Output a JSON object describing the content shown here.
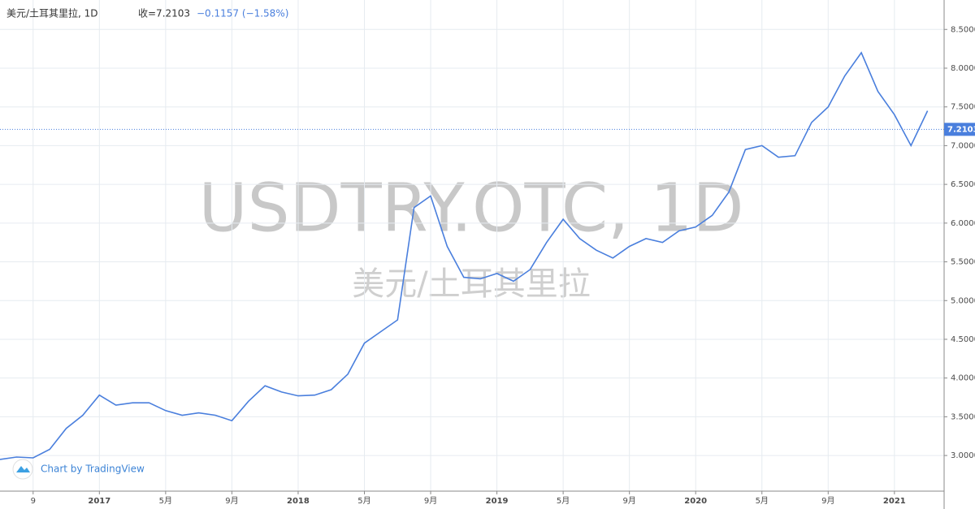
{
  "header": {
    "symbol": "美元/土耳其里拉, 1D",
    "close_text": "收=7.2103",
    "change_text": "−0.1157 (−1.58%)"
  },
  "watermark": {
    "main": "USDTRY.OTC, 1D",
    "sub": "美元/土耳其里拉"
  },
  "attribution": "Chart by TradingView",
  "chart_data": {
    "type": "line",
    "color": "#4a7fdd",
    "grid": true,
    "x": [
      "2016-07",
      "2016-08",
      "2016-09",
      "2016-10",
      "2016-11",
      "2016-12",
      "2017-01",
      "2017-02",
      "2017-03",
      "2017-04",
      "2017-05",
      "2017-06",
      "2017-07",
      "2017-08",
      "2017-09",
      "2017-10",
      "2017-11",
      "2017-12",
      "2018-01",
      "2018-02",
      "2018-03",
      "2018-04",
      "2018-05",
      "2018-06",
      "2018-07",
      "2018-08",
      "2018-09",
      "2018-10",
      "2018-11",
      "2018-12",
      "2019-01",
      "2019-02",
      "2019-03",
      "2019-04",
      "2019-05",
      "2019-06",
      "2019-07",
      "2019-08",
      "2019-09",
      "2019-10",
      "2019-11",
      "2019-12",
      "2020-01",
      "2020-02",
      "2020-03",
      "2020-04",
      "2020-05",
      "2020-06",
      "2020-07",
      "2020-08",
      "2020-09",
      "2020-10",
      "2020-11",
      "2020-12",
      "2021-01",
      "2021-02",
      "2021-03"
    ],
    "values": [
      2.95,
      2.98,
      2.97,
      3.08,
      3.35,
      3.52,
      3.78,
      3.65,
      3.68,
      3.68,
      3.58,
      3.52,
      3.55,
      3.52,
      3.45,
      3.7,
      3.9,
      3.82,
      3.77,
      3.78,
      3.85,
      4.05,
      4.45,
      4.6,
      4.75,
      6.2,
      6.35,
      5.7,
      5.3,
      5.28,
      5.35,
      5.25,
      5.4,
      5.75,
      6.05,
      5.8,
      5.65,
      5.55,
      5.7,
      5.8,
      5.75,
      5.9,
      5.95,
      6.1,
      6.4,
      6.95,
      7.0,
      6.85,
      6.87,
      7.3,
      7.5,
      7.9,
      8.2,
      7.7,
      7.4,
      7.0,
      7.45
    ],
    "last_price": 7.2103,
    "xlim": [
      "2016-07",
      "2021-04"
    ],
    "xticks": [
      {
        "value": "2016-09",
        "label": "9"
      },
      {
        "value": "2017-01",
        "label": "2017"
      },
      {
        "value": "2017-05",
        "label": "5月"
      },
      {
        "value": "2017-09",
        "label": "9月"
      },
      {
        "value": "2018-01",
        "label": "2018"
      },
      {
        "value": "2018-05",
        "label": "5月"
      },
      {
        "value": "2018-09",
        "label": "9月"
      },
      {
        "value": "2019-01",
        "label": "2019"
      },
      {
        "value": "2019-05",
        "label": "5月"
      },
      {
        "value": "2019-09",
        "label": "9月"
      },
      {
        "value": "2020-01",
        "label": "2020"
      },
      {
        "value": "2020-05",
        "label": "5月"
      },
      {
        "value": "2020-09",
        "label": "9月"
      },
      {
        "value": "2021-01",
        "label": "2021"
      }
    ],
    "ylim": [
      2.54,
      8.88
    ],
    "yticks": [
      {
        "value": 3,
        "label": "3.0000"
      },
      {
        "value": 3.5,
        "label": "3.5000"
      },
      {
        "value": 4,
        "label": "4.0000"
      },
      {
        "value": 4.5,
        "label": "4.5000"
      },
      {
        "value": 5,
        "label": "5.0000"
      },
      {
        "value": 5.5,
        "label": "5.5000"
      },
      {
        "value": 6,
        "label": "6.0000"
      },
      {
        "value": 6.5,
        "label": "6.5000"
      },
      {
        "value": 7,
        "label": "7.0000"
      },
      {
        "value": 7.5,
        "label": "7.5000"
      },
      {
        "value": 8,
        "label": "8.0000"
      },
      {
        "value": 8.5,
        "label": "8.5000"
      }
    ]
  }
}
